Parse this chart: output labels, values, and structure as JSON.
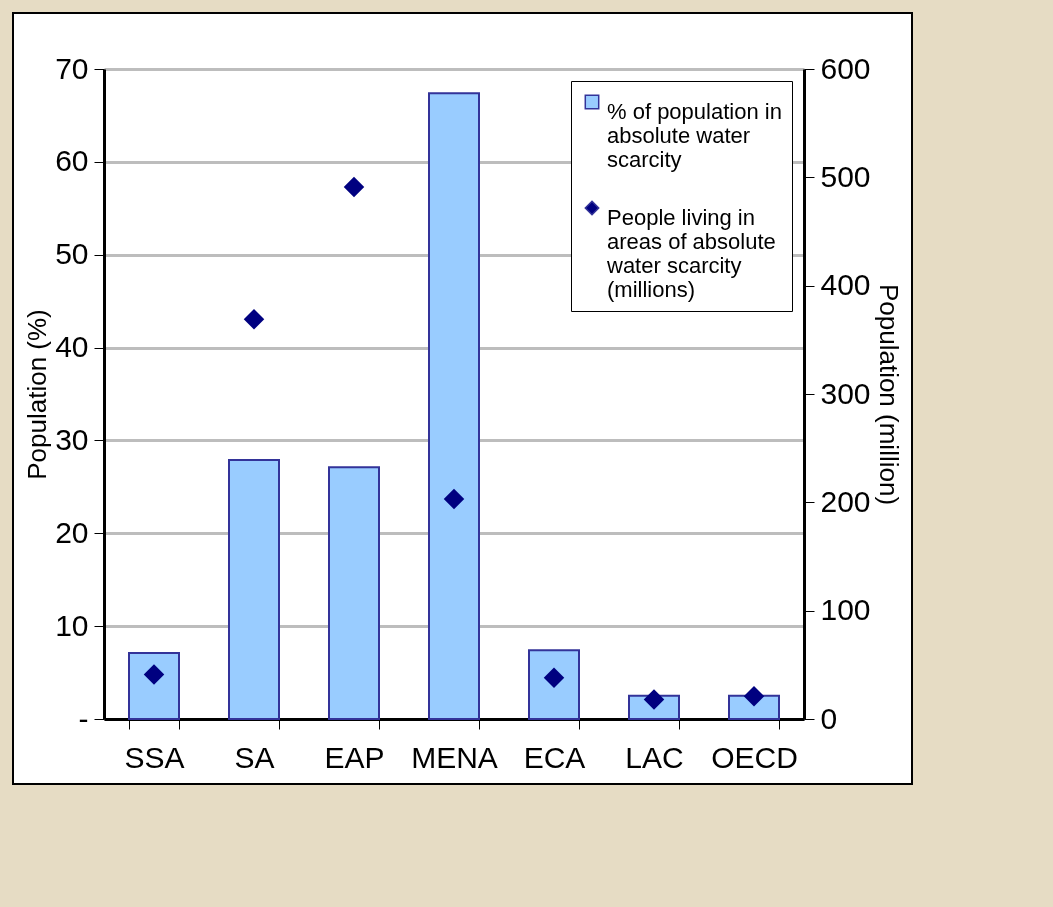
{
  "chart_data": {
    "type": "bar",
    "ylabel": "Population (%)",
    "y2label": "Population (million)",
    "categories": [
      "SSA",
      "SA",
      "EAP",
      "MENA",
      "ECA",
      "LAC",
      "OECD"
    ],
    "series": [
      {
        "name": "% of population in absolute water scarcity",
        "color": "#99ccff",
        "values": [
          7.1,
          27.9,
          27.1,
          67.4,
          7.4,
          2.5,
          2.5
        ]
      },
      {
        "name": "People living in areas of absolute water scarcity (millions)",
        "type": "scatter",
        "axis": "y2",
        "marker": "diamond",
        "color": "#000080",
        "values": [
          41,
          369,
          491,
          203,
          38,
          18,
          21
        ]
      }
    ],
    "ylim": [
      0,
      70
    ],
    "yticks": [
      {
        "value": 0,
        "label": "-"
      },
      10,
      20,
      30,
      40,
      50,
      60,
      70
    ],
    "y2lim": [
      0,
      600
    ],
    "y2ticks": [
      0,
      100,
      200,
      300,
      400,
      500,
      600
    ],
    "grid": "y",
    "legend": "top right"
  }
}
